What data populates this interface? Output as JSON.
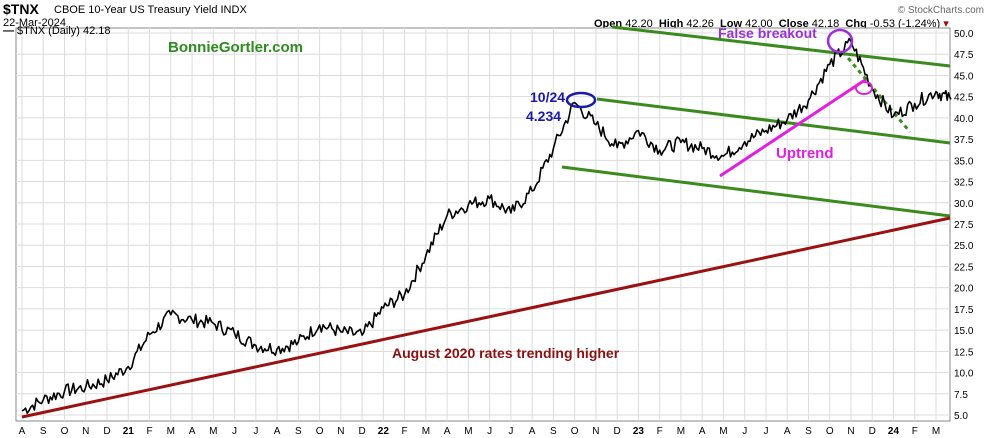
{
  "header": {
    "ticker": "$TNX",
    "description": "CBOE 10-Year US Treasury Yield INDX",
    "date": "22-Mar-2024",
    "watermark": "© StockCharts.com",
    "open_label": "Open",
    "open": "42.20",
    "high_label": "High",
    "high": "42.26",
    "low_label": "Low",
    "low": "42.00",
    "close_label": "Close",
    "close": "42.18",
    "chg_label": "Chg",
    "chg": "-0.53 (-1.24%)",
    "chg_arrow": "▾",
    "legend": "$TNX (Daily) 42.18"
  },
  "chart_data": {
    "type": "line",
    "title": "$TNX CBOE 10-Year US Treasury Yield INDX",
    "ylim": [
      5.0,
      50.0
    ],
    "y_ticks": [
      "5.0",
      "7.5",
      "10.0",
      "12.5",
      "15.0",
      "17.5",
      "20.0",
      "22.5",
      "25.0",
      "27.5",
      "30.0",
      "32.5",
      "35.0",
      "37.5",
      "40.0",
      "42.5",
      "45.0",
      "47.5",
      "50.0"
    ],
    "x_ticks": [
      "A",
      "S",
      "O",
      "N",
      "D",
      "21",
      "F",
      "M",
      "A",
      "M",
      "J",
      "J",
      "A",
      "S",
      "O",
      "N",
      "D",
      "22",
      "F",
      "M",
      "A",
      "M",
      "J",
      "J",
      "A",
      "S",
      "O",
      "N",
      "D",
      "23",
      "F",
      "M",
      "A",
      "M",
      "J",
      "J",
      "A",
      "S",
      "O",
      "N",
      "D",
      "24",
      "F",
      "M"
    ],
    "grid": true,
    "series": [
      {
        "name": "$TNX (Daily) 42.18",
        "color": "#000000",
        "x": [
          0,
          1,
          2,
          3,
          4,
          5,
          6,
          7,
          8,
          9,
          10,
          11,
          12,
          13,
          14,
          15,
          16,
          17,
          18,
          19,
          20,
          21,
          22,
          23,
          24,
          25,
          26,
          27,
          28,
          29,
          30,
          31,
          32,
          33,
          34,
          35,
          36,
          37,
          38,
          39,
          40,
          41,
          42,
          43,
          43.7
        ],
        "values": [
          5.5,
          6.8,
          7.8,
          8.3,
          9.1,
          10.7,
          14.5,
          16.8,
          16.2,
          15.8,
          14.6,
          13.2,
          12.8,
          13.6,
          15.6,
          14.8,
          14.4,
          17.6,
          19.2,
          23.8,
          28.5,
          29.8,
          30.5,
          28.8,
          31.4,
          36.4,
          41.8,
          39.2,
          36.5,
          38.5,
          36.2,
          37.1,
          36.4,
          35.5,
          37.2,
          38.5,
          39.8,
          42.1,
          46.3,
          49.0,
          43.5,
          40.2,
          41.7,
          43.1,
          42.18
        ]
      }
    ],
    "annotations": [
      {
        "text": "BonnieGortler.com",
        "color": "#2e8b1f"
      },
      {
        "text": "False breakout",
        "color": "#9b30d9"
      },
      {
        "text": "10/24",
        "color": "#1a1aa8"
      },
      {
        "text": "4.234",
        "color": "#1a1aa8"
      },
      {
        "text": "Uptrend",
        "color": "#e020e0"
      },
      {
        "text": "August 2020 rates trending higher",
        "color": "#8b1010"
      }
    ]
  },
  "colors": {
    "trend_green": "#3a8a1e",
    "trend_red": "#9b1010",
    "uptrend_magenta": "#e020e0",
    "circle_purple": "#9b30d9",
    "circle_blue": "#1a1aa8",
    "grid": "#dcdcdc"
  }
}
